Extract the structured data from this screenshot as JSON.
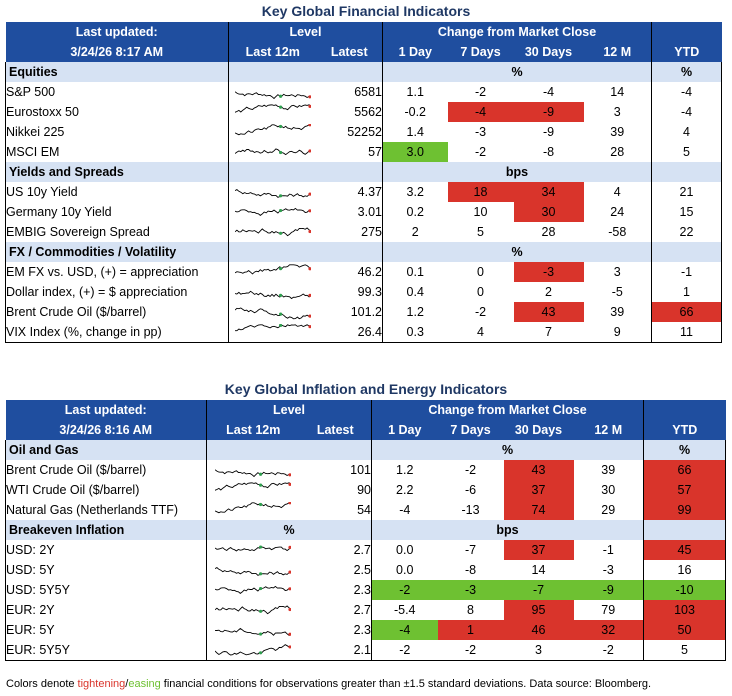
{
  "colors": {
    "red": "#d9342b",
    "green": "#6ec132",
    "header": "#1f4e9f",
    "section": "#d6e2f3"
  },
  "fin": {
    "title": "Key Global Financial Indicators",
    "hdr": {
      "last_updated": "Last updated:",
      "date": "3/24/26 8:17 AM",
      "level": "Level",
      "last12m": "Last 12m",
      "latest": "Latest",
      "change": "Change from Market Close",
      "d1": "1 Day",
      "d7": "7 Days",
      "d30": "30 Days",
      "m12": "12 M",
      "ytd": "YTD"
    },
    "sections": [
      {
        "label": "Equities",
        "unit": "%",
        "unit_ytd": "%",
        "rows": [
          {
            "name": "S&P 500",
            "latest": "6581",
            "d1": "1.1",
            "d7": "-2",
            "d30": "-4",
            "m12": "14",
            "ytd": "-4",
            "hl": {}
          },
          {
            "name": "Eurostoxx 50",
            "latest": "5562",
            "d1": "-0.2",
            "d7": "-4",
            "d30": "-9",
            "m12": "3",
            "ytd": "-4",
            "hl": {
              "d7": "red",
              "d30": "red"
            }
          },
          {
            "name": "Nikkei 225",
            "latest": "52252",
            "d1": "1.4",
            "d7": "-3",
            "d30": "-9",
            "m12": "39",
            "ytd": "4",
            "hl": {}
          },
          {
            "name": "MSCI EM",
            "latest": "57",
            "d1": "3.0",
            "d7": "-2",
            "d30": "-8",
            "m12": "28",
            "ytd": "5",
            "hl": {
              "d1": "green"
            }
          }
        ]
      },
      {
        "label": "Yields and Spreads",
        "unit": "bps",
        "unit_ytd": "",
        "rows": [
          {
            "name": "US 10y Yield",
            "latest": "4.37",
            "d1": "3.2",
            "d7": "18",
            "d30": "34",
            "m12": "4",
            "ytd": "21",
            "hl": {
              "d7": "red",
              "d30": "red"
            }
          },
          {
            "name": "Germany 10y Yield",
            "latest": "3.01",
            "d1": "0.2",
            "d7": "10",
            "d30": "30",
            "m12": "24",
            "ytd": "15",
            "hl": {
              "d30": "red"
            }
          },
          {
            "name": "EMBIG Sovereign Spread",
            "latest": "275",
            "d1": "2",
            "d7": "5",
            "d30": "28",
            "m12": "-58",
            "ytd": "22",
            "hl": {}
          }
        ]
      },
      {
        "label": "FX / Commodities / Volatility",
        "unit": "%",
        "unit_ytd": "",
        "rows": [
          {
            "name": "EM FX vs. USD, (+) = appreciation",
            "latest": "46.2",
            "d1": "0.1",
            "d7": "0",
            "d30": "-3",
            "m12": "3",
            "ytd": "-1",
            "hl": {
              "d30": "red"
            }
          },
          {
            "name": "Dollar index, (+) = $ appreciation",
            "latest": "99.3",
            "d1": "0.4",
            "d7": "0",
            "d30": "2",
            "m12": "-5",
            "ytd": "1",
            "hl": {}
          },
          {
            "name": "Brent Crude Oil ($/barrel)",
            "latest": "101.2",
            "d1": "1.2",
            "d7": "-2",
            "d30": "43",
            "m12": "39",
            "ytd": "66",
            "hl": {
              "d30": "red",
              "ytd": "red"
            }
          },
          {
            "name": "VIX Index (%, change in pp)",
            "latest": "26.4",
            "d1": "0.3",
            "d7": "4",
            "d30": "7",
            "m12": "9",
            "ytd": "11",
            "hl": {}
          }
        ]
      }
    ]
  },
  "inf": {
    "title": "Key Global Inflation and Energy Indicators",
    "hdr": {
      "last_updated": "Last updated:",
      "date": "3/24/26 8:16 AM",
      "level": "Level",
      "last12m": "Last 12m",
      "latest": "Latest",
      "change": "Change from Market Close",
      "d1": "1 Day",
      "d7": "7 Days",
      "d30": "30 Days",
      "m12": "12 M",
      "ytd": "YTD"
    },
    "sections": [
      {
        "label": "Oil and Gas",
        "unit": "%",
        "unit_ytd": "%",
        "rows": [
          {
            "name": "Brent Crude Oil ($/barrel)",
            "latest": "101",
            "d1": "1.2",
            "d7": "-2",
            "d30": "43",
            "m12": "39",
            "ytd": "66",
            "hl": {
              "d30": "red",
              "ytd": "red"
            }
          },
          {
            "name": "WTI Crude Oil ($/barrel)",
            "latest": "90",
            "d1": "2.2",
            "d7": "-6",
            "d30": "37",
            "m12": "30",
            "ytd": "57",
            "hl": {
              "d30": "red",
              "ytd": "red"
            }
          },
          {
            "name": "Natural Gas (Netherlands TTF)",
            "latest": "54",
            "d1": "-4",
            "d7": "-13",
            "d30": "74",
            "m12": "29",
            "ytd": "99",
            "hl": {
              "d30": "red",
              "ytd": "red"
            }
          }
        ]
      },
      {
        "label": "Breakeven Inflation",
        "unit_level": "%",
        "unit": "bps",
        "unit_ytd": "",
        "rows": [
          {
            "name": "USD: 2Y",
            "latest": "2.7",
            "d1": "0.0",
            "d7": "-7",
            "d30": "37",
            "m12": "-1",
            "ytd": "45",
            "hl": {
              "d30": "red",
              "ytd": "red"
            }
          },
          {
            "name": "USD: 5Y",
            "latest": "2.5",
            "d1": "0.0",
            "d7": "-8",
            "d30": "14",
            "m12": "-3",
            "ytd": "16",
            "hl": {}
          },
          {
            "name": "USD: 5Y5Y",
            "latest": "2.3",
            "d1": "-2",
            "d7": "-3",
            "d30": "-7",
            "m12": "-9",
            "ytd": "-10",
            "hl": {
              "d1": "green",
              "d7": "green",
              "d30": "green",
              "m12": "green",
              "ytd": "green"
            }
          },
          {
            "name": "EUR: 2Y",
            "latest": "2.7",
            "d1": "-5.4",
            "d7": "8",
            "d30": "95",
            "m12": "79",
            "ytd": "103",
            "hl": {
              "d30": "red",
              "ytd": "red"
            }
          },
          {
            "name": "EUR: 5Y",
            "latest": "2.3",
            "d1": "-4",
            "d7": "1",
            "d30": "46",
            "m12": "32",
            "ytd": "50",
            "hl": {
              "d1": "green",
              "d7": "red",
              "d30": "red",
              "m12": "red",
              "ytd": "red"
            }
          },
          {
            "name": "EUR: 5Y5Y",
            "latest": "2.1",
            "d1": "-2",
            "d7": "-2",
            "d30": "3",
            "m12": "-2",
            "ytd": "5",
            "hl": {}
          }
        ]
      }
    ]
  },
  "footer": {
    "prefix": "Colors denote ",
    "tightening": "tightening",
    "slash": "/",
    "easing": "easing",
    "suffix": " financial conditions for observations greater than ±1.5 standard deviations. Data source: Bloomberg."
  }
}
